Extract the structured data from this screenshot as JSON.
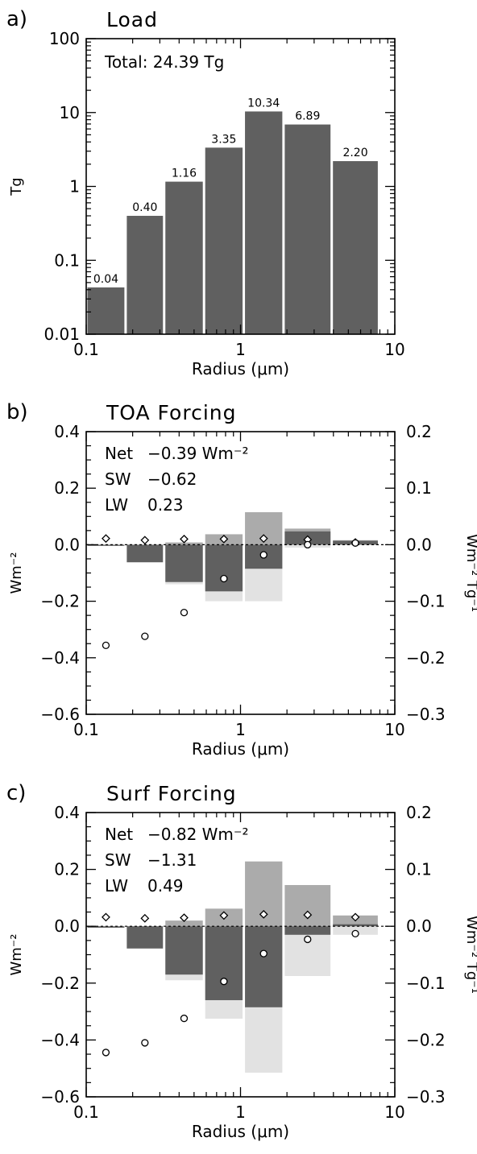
{
  "chart_data": [
    {
      "panel": "a)",
      "type": "bar",
      "title": "Load",
      "xlabel": "Radius (μm)",
      "ylabel": "Tg",
      "xscale": "log",
      "yscale": "log",
      "xlim": [
        0.1,
        10
      ],
      "ylim": [
        0.01,
        100
      ],
      "xticks": [
        "0.1",
        "1",
        "10"
      ],
      "yticks": [
        "0.01",
        "0.1",
        "1",
        "10",
        "100"
      ],
      "annotation": "Total: 24.39 Tg",
      "bins": [
        {
          "x0": 0.1,
          "x1": 0.18
        },
        {
          "x0": 0.18,
          "x1": 0.32
        },
        {
          "x0": 0.32,
          "x1": 0.58
        },
        {
          "x0": 0.58,
          "x1": 1.05
        },
        {
          "x0": 1.05,
          "x1": 1.9
        },
        {
          "x0": 1.9,
          "x1": 3.9
        },
        {
          "x0": 3.9,
          "x1": 7.9
        }
      ],
      "values": [
        0.043,
        0.4,
        1.16,
        3.35,
        10.34,
        6.89,
        2.2
      ],
      "labels": [
        "0.04",
        "0.40",
        "1.16",
        "3.35",
        "10.34",
        "6.89",
        "2.20"
      ],
      "colors": {
        "bar": "#606060"
      }
    },
    {
      "panel": "b)",
      "type": "bar",
      "title": "TOA Forcing",
      "xlabel": "Radius (μm)",
      "ylabel": "Wm⁻²",
      "y2label": "Wm⁻² Tg⁻¹",
      "xscale": "log",
      "xlim": [
        0.1,
        10
      ],
      "ylim": [
        -0.6,
        0.4
      ],
      "y2lim": [
        -0.3,
        0.2
      ],
      "xticks": [
        "0.1",
        "1",
        "10"
      ],
      "yticks": [
        "−0.6",
        "−0.4",
        "−0.2",
        "0.0",
        "0.2",
        "0.4"
      ],
      "y2ticks": [
        "−0.3",
        "−0.2",
        "−0.1",
        "0.0",
        "0.1",
        "0.2"
      ],
      "annotation": [
        {
          "name": "Net",
          "value": "−0.39 Wm⁻²"
        },
        {
          "name": "SW",
          "value": "−0.62"
        },
        {
          "name": "LW",
          "value": "0.23"
        }
      ],
      "bins": [
        {
          "x0": 0.1,
          "x1": 0.18
        },
        {
          "x0": 0.18,
          "x1": 0.32
        },
        {
          "x0": 0.32,
          "x1": 0.58
        },
        {
          "x0": 0.58,
          "x1": 1.05
        },
        {
          "x0": 1.05,
          "x1": 1.9
        },
        {
          "x0": 1.9,
          "x1": 3.9
        },
        {
          "x0": 3.9,
          "x1": 7.9
        }
      ],
      "sw": [
        -0.004,
        -0.063,
        -0.14,
        -0.2,
        -0.2,
        -0.01,
        0.0
      ],
      "lw": [
        0.0,
        0.0,
        0.008,
        0.037,
        0.115,
        0.057,
        0.016
      ],
      "net": [
        -0.004,
        -0.062,
        -0.132,
        -0.165,
        -0.085,
        0.047,
        0.014
      ],
      "per_load_diamond": [
        0.011,
        0.008,
        0.01,
        0.01,
        0.011,
        0.009,
        0.004
      ],
      "per_load_circle": [
        -0.178,
        -0.162,
        -0.12,
        -0.06,
        -0.018,
        0.0,
        0.003
      ],
      "colors": {
        "net": "#606060",
        "lw": "#ababab",
        "sw": "#e2e2e2",
        "marker_fill": "#ffffff",
        "marker_stroke": "#000000"
      }
    },
    {
      "panel": "c)",
      "type": "bar",
      "title": "Surf Forcing",
      "xlabel": "Radius (μm)",
      "ylabel": "Wm⁻²",
      "y2label": "Wm⁻² Tg⁻¹",
      "xscale": "log",
      "xlim": [
        0.1,
        10
      ],
      "ylim": [
        -0.6,
        0.4
      ],
      "y2lim": [
        -0.3,
        0.2
      ],
      "xticks": [
        "0.1",
        "1",
        "10"
      ],
      "yticks": [
        "−0.6",
        "−0.4",
        "−0.2",
        "0.0",
        "0.2",
        "0.4"
      ],
      "y2ticks": [
        "−0.3",
        "−0.2",
        "−0.1",
        "0.0",
        "0.1",
        "0.2"
      ],
      "annotation": [
        {
          "name": "Net",
          "value": "−0.82 Wm⁻²"
        },
        {
          "name": "SW",
          "value": "−1.31"
        },
        {
          "name": "LW",
          "value": "0.49"
        }
      ],
      "bins": [
        {
          "x0": 0.1,
          "x1": 0.18
        },
        {
          "x0": 0.18,
          "x1": 0.32
        },
        {
          "x0": 0.32,
          "x1": 0.58
        },
        {
          "x0": 0.58,
          "x1": 1.05
        },
        {
          "x0": 1.05,
          "x1": 1.9
        },
        {
          "x0": 1.9,
          "x1": 3.9
        },
        {
          "x0": 3.9,
          "x1": 7.9
        }
      ],
      "sw": [
        -0.006,
        -0.08,
        -0.19,
        -0.325,
        -0.515,
        -0.175,
        -0.03
      ],
      "lw": [
        0.0,
        0.0,
        0.02,
        0.062,
        0.228,
        0.145,
        0.038
      ],
      "net": [
        -0.005,
        -0.078,
        -0.17,
        -0.26,
        -0.285,
        -0.03,
        0.007
      ],
      "per_load_diamond": [
        0.016,
        0.014,
        0.015,
        0.019,
        0.021,
        0.02,
        0.016
      ],
      "per_load_circle": [
        -0.222,
        -0.205,
        -0.162,
        -0.097,
        -0.048,
        -0.023,
        -0.013
      ],
      "colors": {
        "net": "#606060",
        "lw": "#ababab",
        "sw": "#e2e2e2",
        "marker_fill": "#ffffff",
        "marker_stroke": "#000000"
      }
    }
  ]
}
